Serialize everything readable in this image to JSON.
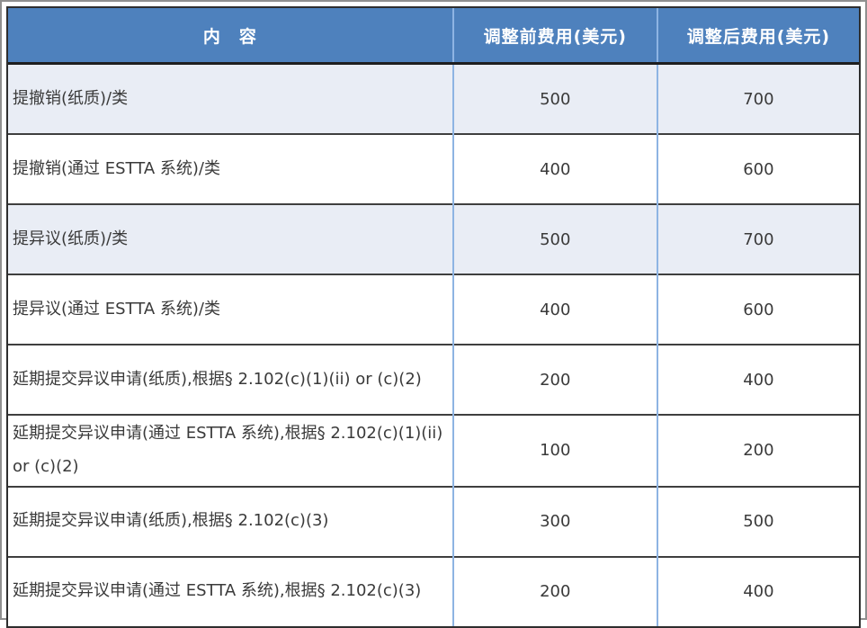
{
  "table": {
    "columns": [
      {
        "label": "内　容"
      },
      {
        "label": "调整前费用(美元)"
      },
      {
        "label": "调整后费用(美元)"
      }
    ],
    "rows": [
      {
        "content": "提撤销(纸质)/类",
        "fee_before": "500",
        "fee_after": "700",
        "shaded": true
      },
      {
        "content": "提撤销(通过 ESTTA 系统)/类",
        "fee_before": "400",
        "fee_after": "600",
        "shaded": false
      },
      {
        "content": "提异议(纸质)/类",
        "fee_before": "500",
        "fee_after": "700",
        "shaded": true
      },
      {
        "content": "提异议(通过 ESTTA 系统)/类",
        "fee_before": "400",
        "fee_after": "600",
        "shaded": false
      },
      {
        "content": "延期提交异议申请(纸质),根据§ 2.102(c)(1)(ii) or (c)(2)",
        "fee_before": "200",
        "fee_after": "400",
        "shaded": false
      },
      {
        "content": "延期提交异议申请(通过 ESTTA 系统),根据§ 2.102(c)(1)(ii) or (c)(2)",
        "fee_before": "100",
        "fee_after": "200",
        "shaded": false
      },
      {
        "content": "延期提交异议申请(纸质),根据§ 2.102(c)(3)",
        "fee_before": "300",
        "fee_after": "500",
        "shaded": false
      },
      {
        "content": "延期提交异议申请(通过 ESTTA 系统),根据§ 2.102(c)(3)",
        "fee_before": "200",
        "fee_after": "400",
        "shaded": false
      }
    ],
    "colors": {
      "header_bg": "#4E81BD",
      "header_text": "#FFFFFF",
      "shaded_row_bg": "#E9EDF5",
      "row_bg": "#FFFFFF",
      "vertical_border": "#8EB4E3",
      "horizontal_border": "#3F3F3F",
      "outer_border": "#2E2E2E",
      "page_frame": "#8F8F8F",
      "body_text": "#3A3A3A"
    }
  }
}
